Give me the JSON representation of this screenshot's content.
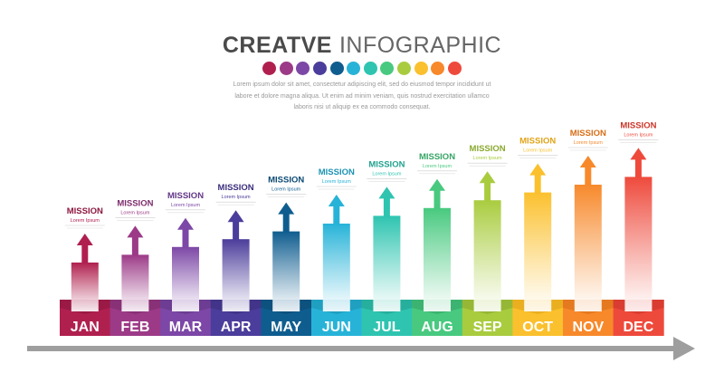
{
  "header": {
    "title_bold": "CREATVE",
    "title_light": "INFOGRAPHIC",
    "description": "Lorem ipsum dolor sit amet, consectetur adipiscing elit, sed do eiusmod tempor incididunt ut labore et dolore magna aliqua. Ut enim ad minim veniam, quis nostrud exercitation ullamco laboris nisi ut aliquip ex ea commodo consequat."
  },
  "steps": [
    {
      "month": "JAN",
      "title": "MISSION",
      "subtitle": "Lorem Ipsum",
      "color": "#b0204f",
      "dark": "#8e1740"
    },
    {
      "month": "FEB",
      "title": "MISSION",
      "subtitle": "Lorem Ipsum",
      "color": "#9c3a87",
      "dark": "#7d2c6c"
    },
    {
      "month": "MAR",
      "title": "MISSION",
      "subtitle": "Lorem Ipsum",
      "color": "#7c47a6",
      "dark": "#623786"
    },
    {
      "month": "APR",
      "title": "MISSION",
      "subtitle": "Lorem Ipsum",
      "color": "#4b3d9b",
      "dark": "#3a2f7d"
    },
    {
      "month": "MAY",
      "title": "MISSION",
      "subtitle": "Lorem Ipsum",
      "color": "#0f5d8f",
      "dark": "#0b4a73"
    },
    {
      "month": "JUN",
      "title": "MISSION",
      "subtitle": "Lorem Ipsum",
      "color": "#27b3d8",
      "dark": "#1d93b3"
    },
    {
      "month": "JUL",
      "title": "MISSION",
      "subtitle": "Lorem Ipsum",
      "color": "#2ec4b0",
      "dark": "#22a190"
    },
    {
      "month": "AUG",
      "title": "MISSION",
      "subtitle": "Lorem Ipsum",
      "color": "#48c97f",
      "dark": "#36a565"
    },
    {
      "month": "SEP",
      "title": "MISSION",
      "subtitle": "Lorem Ipsum",
      "color": "#a9cc3f",
      "dark": "#8aa92f"
    },
    {
      "month": "OCT",
      "title": "MISSION",
      "subtitle": "Lorem Ipsum",
      "color": "#fbc02d",
      "dark": "#e0a418"
    },
    {
      "month": "NOV",
      "title": "MISSION",
      "subtitle": "Lorem Ipsum",
      "color": "#f7892b",
      "dark": "#d86e17"
    },
    {
      "month": "DEC",
      "title": "MISSION",
      "subtitle": "Lorem Ipsum",
      "color": "#ee4a3c",
      "dark": "#cc3629"
    }
  ],
  "timeline_color": "#9e9e9e"
}
